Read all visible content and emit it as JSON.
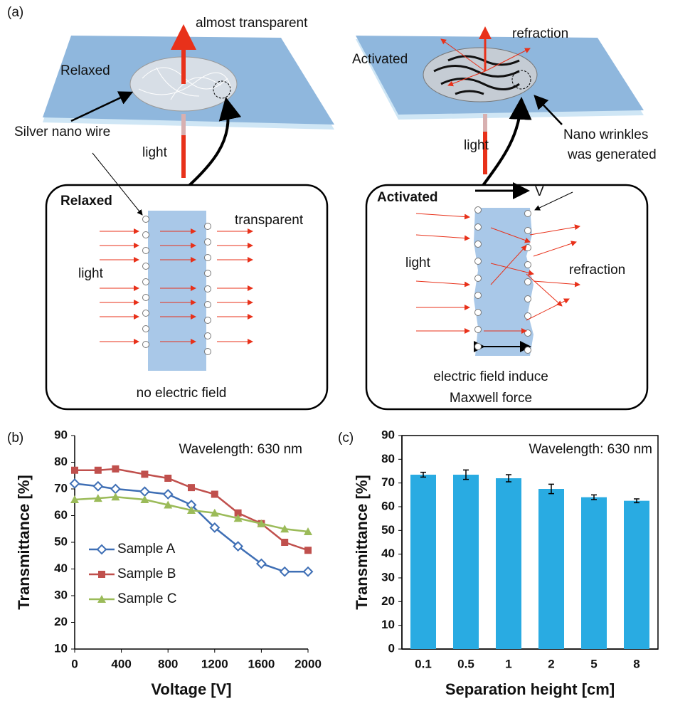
{
  "diagram": {
    "panel_label": "(a)",
    "relaxed": {
      "plate_label": "Relaxed",
      "top_arrow_label": "almost transparent",
      "wire_label": "Silver nano wire",
      "light_label": "light",
      "box": {
        "title": "Relaxed",
        "out_label": "transparent",
        "light_label": "light",
        "caption": "no electric field"
      }
    },
    "activated": {
      "plate_label": "Activated",
      "top_arrow_label": "refraction",
      "light_label": "light",
      "wrinkle_label": [
        "Nano wrinkles",
        "was generated"
      ],
      "box": {
        "title": "Activated",
        "voltage_label": "V",
        "light_label": "light",
        "out_label": "refraction",
        "caption": [
          "electric field induce",
          "Maxwell force"
        ]
      }
    }
  },
  "chart_data": [
    {
      "type": "line",
      "panel_label": "(b)",
      "annotation": "Wavelength: 630 nm",
      "x_label": "Voltage [V]",
      "y_label": "Transmittance  [%]",
      "x": [
        0,
        200,
        350,
        600,
        800,
        1000,
        1200,
        1400,
        1600,
        1800,
        2000
      ],
      "series": [
        {
          "name": "Sample A",
          "color": "#3f6fb5",
          "marker": "diamond",
          "values": [
            72,
            71,
            70,
            69,
            68,
            64,
            55.5,
            48.5,
            42,
            39,
            39
          ]
        },
        {
          "name": "Sample B",
          "color": "#c0504d",
          "marker": "square",
          "values": [
            77,
            77,
            77.5,
            75.5,
            74,
            70.5,
            68,
            61,
            57,
            50,
            47
          ]
        },
        {
          "name": "Sample C",
          "color": "#9bbb59",
          "marker": "triangle",
          "values": [
            66,
            66.5,
            67,
            66,
            64,
            62,
            61,
            59,
            57,
            55,
            54
          ]
        }
      ],
      "xlim": [
        0,
        2000
      ],
      "xticks": [
        0,
        400,
        800,
        1200,
        1600,
        2000
      ],
      "ylim": [
        10,
        90
      ],
      "yticks": [
        10,
        20,
        30,
        40,
        50,
        60,
        70,
        80,
        90
      ],
      "legend": "lower left"
    },
    {
      "type": "bar",
      "panel_label": "(c)",
      "annotation": "Wavelength: 630 nm",
      "x_label": "Separation height  [cm]",
      "y_label": "Transmittance  [%]",
      "categories": [
        "0.1",
        "0.5",
        "1",
        "2",
        "5",
        "8"
      ],
      "values": [
        73.5,
        73.5,
        72,
        67.5,
        64,
        62.5
      ],
      "errors": [
        1,
        2,
        1.5,
        2,
        1,
        0.8
      ],
      "color": "#29abe2",
      "ylim": [
        0,
        90
      ],
      "yticks": [
        0,
        10,
        20,
        30,
        40,
        50,
        60,
        70,
        80,
        90
      ]
    }
  ]
}
